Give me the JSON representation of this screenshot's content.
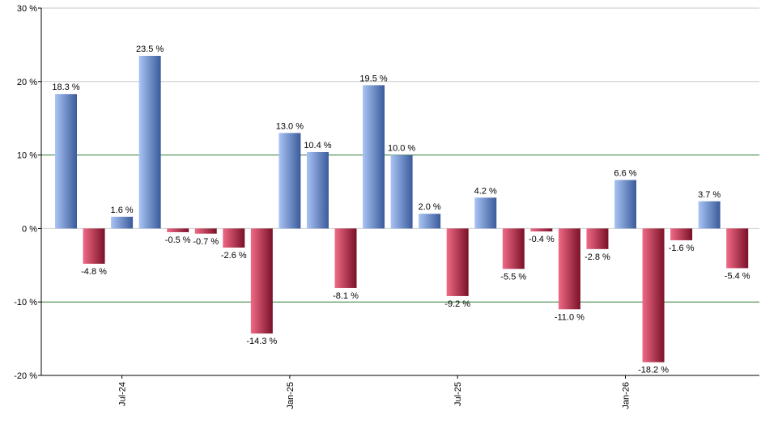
{
  "chart_data": {
    "type": "bar",
    "title": "",
    "xlabel": "",
    "ylabel": "",
    "ylim": [
      -20,
      30
    ],
    "yticks": [
      30,
      20,
      10,
      0,
      -10,
      -20
    ],
    "ytick_labels": [
      "30 %",
      "20 %",
      "10 %",
      "0 %",
      "-10 %",
      "-20 %"
    ],
    "xtick_labels": [
      {
        "label": "Jul-24",
        "index": 2
      },
      {
        "label": "Jan-25",
        "index": 8
      },
      {
        "label": "Jul-25",
        "index": 14
      },
      {
        "label": "Jan-26",
        "index": 20
      }
    ],
    "grid": true,
    "reference_lines": [
      10,
      -10
    ],
    "colors": {
      "positive_light": "#a9c4f5",
      "positive_dark": "#3a5a9a",
      "negative_light": "#f06a86",
      "negative_dark": "#7a1028",
      "gridline": "#c8c8c8",
      "reference_line": "#2e7d32",
      "axis": "#000000"
    },
    "values": [
      18.3,
      -4.8,
      1.6,
      23.5,
      -0.5,
      -0.7,
      -2.6,
      -14.3,
      13.0,
      10.4,
      -8.1,
      19.5,
      10.0,
      2.0,
      -9.2,
      4.2,
      -5.5,
      -0.4,
      -11.0,
      -2.8,
      6.6,
      -18.2,
      -1.6,
      3.7,
      -5.4
    ],
    "data_labels": [
      "18.3 %",
      "-4.8 %",
      "1.6 %",
      "23.5 %",
      "-0.5 %",
      "-0.7 %",
      "-2.6 %",
      "-14.3 %",
      "13.0 %",
      "10.4 %",
      "-8.1 %",
      "19.5 %",
      "10.0 %",
      "2.0 %",
      "-9.2 %",
      "4.2 %",
      "-5.5 %",
      "-0.4 %",
      "-11.0 %",
      "-2.8 %",
      "6.6 %",
      "-18.2 %",
      "-1.6 %",
      "3.7 %",
      "-5.4 %"
    ]
  }
}
